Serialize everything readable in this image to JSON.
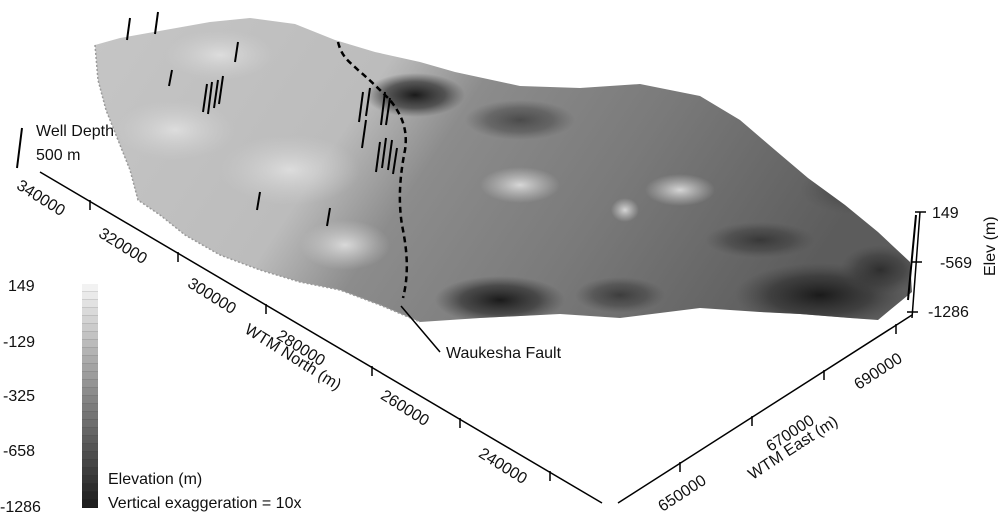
{
  "well_depth": {
    "label_line1": "Well Depth",
    "label_line2": "500 m"
  },
  "axes": {
    "north": {
      "title": "WTM North (m)",
      "ticks": [
        "340000",
        "320000",
        "300000",
        "280000",
        "260000",
        "240000"
      ]
    },
    "east": {
      "title": "WTM East (m)",
      "ticks": [
        "650000",
        "670000",
        "690000"
      ]
    },
    "elev": {
      "title": "Elev (m)",
      "ticks": [
        "149",
        "-569",
        "-1286"
      ]
    }
  },
  "fault": {
    "label": "Waukesha Fault"
  },
  "colorbar": {
    "ticks": [
      "149",
      "-129",
      "-325",
      "-658",
      "-1286"
    ],
    "title": "Elevation (m)",
    "note": "Vertical exaggeration = 10x",
    "color_low": "#1e1e1e",
    "color_high": "#f2f2f2"
  }
}
